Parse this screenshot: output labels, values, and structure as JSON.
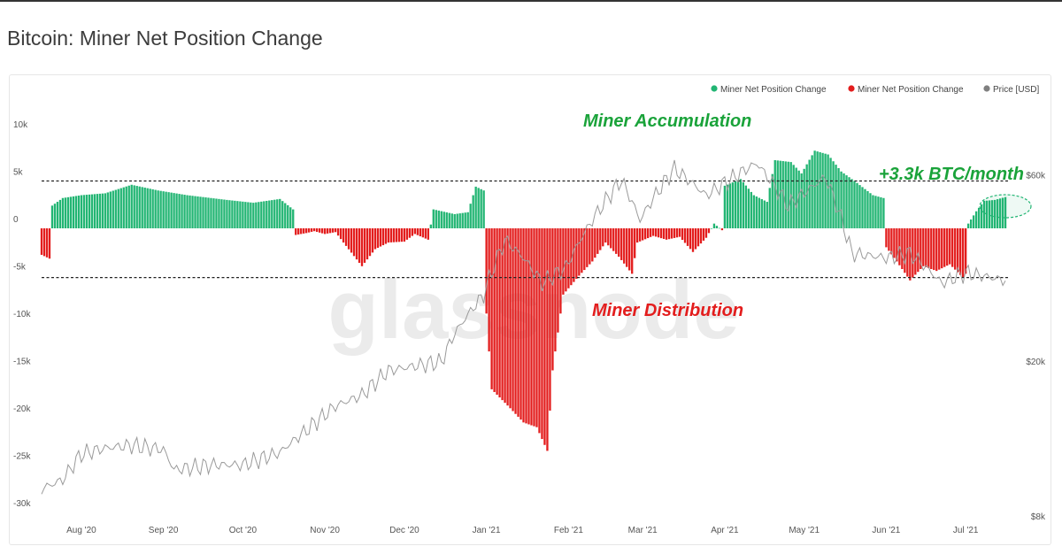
{
  "page": {
    "title": "Bitcoin: Miner Net Position Change"
  },
  "colors": {
    "positive": "#22b573",
    "negative": "#e31d1d",
    "price": "#9a9a9a",
    "annotation_green": "#1aa33a",
    "annotation_red": "#e31d1d"
  },
  "legend": [
    {
      "label": "Miner Net Position Change",
      "color": "#22b573"
    },
    {
      "label": "Miner Net Position Change",
      "color": "#e31d1d"
    },
    {
      "label": "Price [USD]",
      "color": "#808080"
    }
  ],
  "watermark": "glassnode",
  "annotations": {
    "accumulation": "Miner Accumulation",
    "distribution": "Miner Distribution",
    "rate": "+3.3k BTC/month"
  },
  "chart_data": {
    "type": "bar",
    "title": "Bitcoin: Miner Net Position Change",
    "x_range": [
      "2020-07-17",
      "2021-07-22"
    ],
    "y_left": {
      "range": [
        -30000,
        10000
      ],
      "ticks": [
        10000,
        5000,
        0,
        -5000,
        -10000,
        -15000,
        -20000,
        -25000,
        -30000
      ],
      "tick_labels": [
        "10k",
        "5k",
        "0",
        "-5k",
        "-10k",
        "-15k",
        "-20k",
        "-25k",
        "-30k"
      ]
    },
    "y_right": {
      "scale": "log",
      "range": [
        8000,
        75000
      ],
      "ticks": [
        60000,
        20000,
        8000
      ],
      "tick_labels": [
        "$60k",
        "$20k",
        "$8k"
      ]
    },
    "x_ticks": [
      {
        "date": "2020-08-01",
        "label": "Aug '20"
      },
      {
        "date": "2020-09-01",
        "label": "Sep '20"
      },
      {
        "date": "2020-10-01",
        "label": "Oct '20"
      },
      {
        "date": "2020-11-01",
        "label": "Nov '20"
      },
      {
        "date": "2020-12-01",
        "label": "Dec '20"
      },
      {
        "date": "2021-01-01",
        "label": "Jan '21"
      },
      {
        "date": "2021-02-01",
        "label": "Feb '21"
      },
      {
        "date": "2021-03-01",
        "label": "Mar '21"
      },
      {
        "date": "2021-04-01",
        "label": "Apr '21"
      },
      {
        "date": "2021-05-01",
        "label": "May '21"
      },
      {
        "date": "2021-06-01",
        "label": "Jun '21"
      },
      {
        "date": "2021-07-01",
        "label": "Jul '21"
      }
    ],
    "reference_lines": [
      5000,
      -5200
    ],
    "net_position_anchors": [
      [
        "2020-07-17",
        -2800
      ],
      [
        "2020-07-20",
        -3200
      ],
      [
        "2020-07-21",
        2400
      ],
      [
        "2020-07-25",
        3200
      ],
      [
        "2020-08-01",
        3500
      ],
      [
        "2020-08-10",
        3700
      ],
      [
        "2020-08-20",
        4600
      ],
      [
        "2020-08-30",
        4000
      ],
      [
        "2020-09-10",
        3500
      ],
      [
        "2020-09-25",
        3000
      ],
      [
        "2020-10-05",
        2700
      ],
      [
        "2020-10-15",
        3100
      ],
      [
        "2020-10-20",
        2000
      ],
      [
        "2020-10-21",
        -700
      ],
      [
        "2020-10-25",
        -500
      ],
      [
        "2020-10-28",
        -300
      ],
      [
        "2020-11-01",
        -600
      ],
      [
        "2020-11-05",
        -400
      ],
      [
        "2020-11-08",
        -1500
      ],
      [
        "2020-11-15",
        -4000
      ],
      [
        "2020-11-20",
        -2200
      ],
      [
        "2020-11-25",
        -1500
      ],
      [
        "2020-12-01",
        -1400
      ],
      [
        "2020-12-05",
        -600
      ],
      [
        "2020-12-10",
        -1200
      ],
      [
        "2020-12-12",
        2000
      ],
      [
        "2020-12-20",
        1500
      ],
      [
        "2020-12-25",
        1700
      ],
      [
        "2020-12-28",
        4400
      ],
      [
        "2020-12-31",
        4000
      ],
      [
        "2021-01-01",
        -9000
      ],
      [
        "2021-01-03",
        -17000
      ],
      [
        "2021-01-10",
        -19000
      ],
      [
        "2021-01-15",
        -20500
      ],
      [
        "2021-01-20",
        -21000
      ],
      [
        "2021-01-24",
        -23500
      ],
      [
        "2021-01-26",
        -15000
      ],
      [
        "2021-01-30",
        -7000
      ],
      [
        "2021-02-05",
        -5000
      ],
      [
        "2021-02-10",
        -3500
      ],
      [
        "2021-02-15",
        -1500
      ],
      [
        "2021-02-20",
        -3000
      ],
      [
        "2021-02-25",
        -4800
      ],
      [
        "2021-02-27",
        -1500
      ],
      [
        "2021-03-05",
        -800
      ],
      [
        "2021-03-10",
        -1200
      ],
      [
        "2021-03-15",
        -900
      ],
      [
        "2021-03-20",
        -2500
      ],
      [
        "2021-03-25",
        -1000
      ],
      [
        "2021-03-28",
        500
      ],
      [
        "2021-03-31",
        -200
      ],
      [
        "2021-04-01",
        4500
      ],
      [
        "2021-04-07",
        5200
      ],
      [
        "2021-04-12",
        3500
      ],
      [
        "2021-04-17",
        2800
      ],
      [
        "2021-04-20",
        7200
      ],
      [
        "2021-04-26",
        7000
      ],
      [
        "2021-04-30",
        5800
      ],
      [
        "2021-05-05",
        8200
      ],
      [
        "2021-05-10",
        7800
      ],
      [
        "2021-05-15",
        6000
      ],
      [
        "2021-05-20",
        5000
      ],
      [
        "2021-05-27",
        3500
      ],
      [
        "2021-05-31",
        3200
      ],
      [
        "2021-06-01",
        -2000
      ],
      [
        "2021-06-05",
        -3500
      ],
      [
        "2021-06-10",
        -5500
      ],
      [
        "2021-06-15",
        -4000
      ],
      [
        "2021-06-20",
        -4500
      ],
      [
        "2021-06-25",
        -3800
      ],
      [
        "2021-06-30",
        -5200
      ],
      [
        "2021-07-01",
        -4800
      ],
      [
        "2021-07-02",
        500
      ],
      [
        "2021-07-05",
        1800
      ],
      [
        "2021-07-08",
        2900
      ],
      [
        "2021-07-12",
        3000
      ],
      [
        "2021-07-16",
        3300
      ]
    ],
    "price_usd_anchors": [
      [
        "2020-07-17",
        9200
      ],
      [
        "2020-07-25",
        9700
      ],
      [
        "2020-08-01",
        11300
      ],
      [
        "2020-08-10",
        11700
      ],
      [
        "2020-08-20",
        11900
      ],
      [
        "2020-09-01",
        11600
      ],
      [
        "2020-09-05",
        10300
      ],
      [
        "2020-09-20",
        10600
      ],
      [
        "2020-10-01",
        10600
      ],
      [
        "2020-10-15",
        11400
      ],
      [
        "2020-10-25",
        13000
      ],
      [
        "2020-11-05",
        15000
      ],
      [
        "2020-11-15",
        16000
      ],
      [
        "2020-11-25",
        18500
      ],
      [
        "2020-12-05",
        19000
      ],
      [
        "2020-12-15",
        19500
      ],
      [
        "2020-12-20",
        23000
      ],
      [
        "2020-12-31",
        29000
      ],
      [
        "2021-01-08",
        40000
      ],
      [
        "2021-01-15",
        36000
      ],
      [
        "2021-01-22",
        31000
      ],
      [
        "2021-01-31",
        34000
      ],
      [
        "2021-02-10",
        45000
      ],
      [
        "2021-02-21",
        57000
      ],
      [
        "2021-02-28",
        45000
      ],
      [
        "2021-03-13",
        61000
      ],
      [
        "2021-03-25",
        52000
      ],
      [
        "2021-04-13",
        63000
      ],
      [
        "2021-04-25",
        49000
      ],
      [
        "2021-05-09",
        58000
      ],
      [
        "2021-05-19",
        37000
      ],
      [
        "2021-06-01",
        36000
      ],
      [
        "2021-06-10",
        37000
      ],
      [
        "2021-06-22",
        31000
      ],
      [
        "2021-07-01",
        33000
      ],
      [
        "2021-07-16",
        31500
      ]
    ]
  }
}
